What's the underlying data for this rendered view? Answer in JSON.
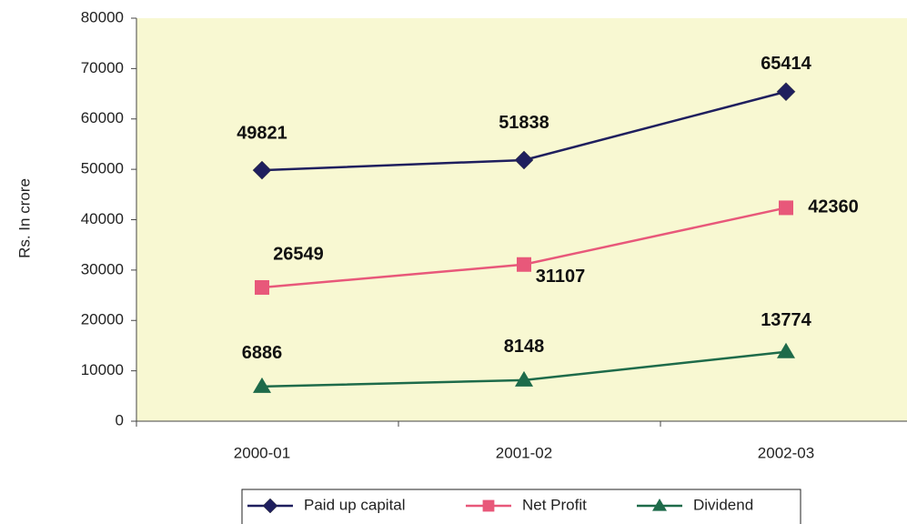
{
  "chart_data": {
    "type": "line",
    "y_label": "Rs. In crore",
    "categories": [
      "2000-01",
      "2001-02",
      "2002-03"
    ],
    "series": [
      {
        "name": "Paid up capital",
        "color": "#1f1f5e",
        "marker": "diamond",
        "values": [
          49821,
          51838,
          65414
        ]
      },
      {
        "name": "Net Profit",
        "color": "#e8587a",
        "marker": "square",
        "values": [
          26549,
          31107,
          42360
        ]
      },
      {
        "name": "Dividend",
        "color": "#1e6b4a",
        "marker": "triangle",
        "values": [
          6886,
          8148,
          13774
        ]
      }
    ],
    "ylim": [
      0,
      80000
    ],
    "yticks": [
      0,
      10000,
      20000,
      30000,
      40000,
      50000,
      60000,
      70000,
      80000
    ],
    "legend": "bottom"
  }
}
